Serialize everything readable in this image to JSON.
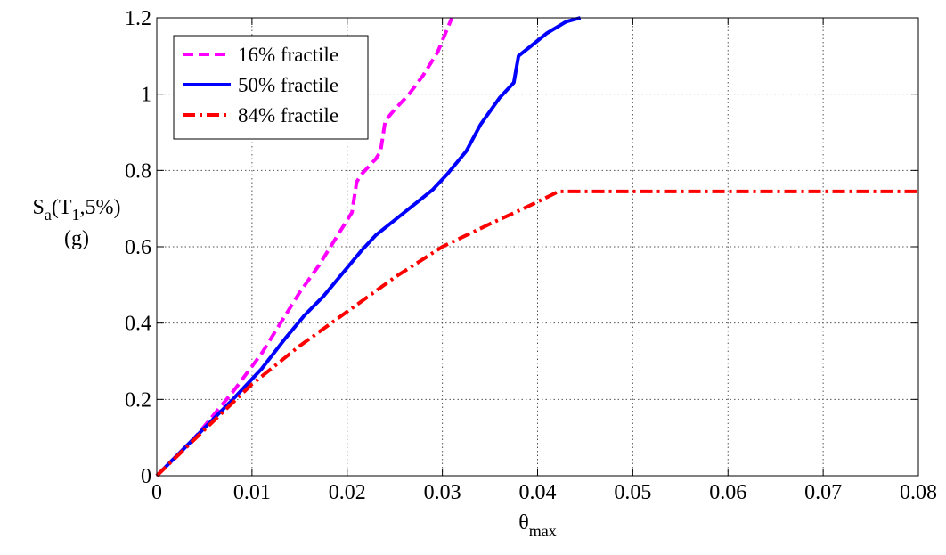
{
  "chart_data": {
    "type": "line",
    "xlabel": {
      "base": "θ",
      "sub": "max"
    },
    "ylabel": {
      "line1": {
        "base": "S",
        "sub1": "a",
        "mid": "(T",
        "sub2": "1",
        "end": ",5%)"
      },
      "line2": "(g)"
    },
    "xlim": [
      0,
      0.08
    ],
    "ylim": [
      0,
      1.2
    ],
    "xticks": [
      0,
      0.01,
      0.02,
      0.03,
      0.04,
      0.05,
      0.06,
      0.07,
      0.08
    ],
    "xtick_labels": [
      "0",
      "0.01",
      "0.02",
      "0.03",
      "0.04",
      "0.05",
      "0.06",
      "0.07",
      "0.08"
    ],
    "yticks": [
      0,
      0.2,
      0.4,
      0.6,
      0.8,
      1.0,
      1.2
    ],
    "ytick_labels": [
      "0",
      "0.2",
      "0.4",
      "0.6",
      "0.8",
      "1",
      "1.2"
    ],
    "grid": true,
    "legend_position": "top-left",
    "series": [
      {
        "name": "16% fractile",
        "color": "#ff00ff",
        "style": "dashed",
        "points": [
          [
            0,
            0
          ],
          [
            0.004,
            0.1
          ],
          [
            0.008,
            0.22
          ],
          [
            0.011,
            0.32
          ],
          [
            0.0135,
            0.42
          ],
          [
            0.015,
            0.48
          ],
          [
            0.017,
            0.55
          ],
          [
            0.019,
            0.63
          ],
          [
            0.0205,
            0.69
          ],
          [
            0.021,
            0.77
          ],
          [
            0.0215,
            0.79
          ],
          [
            0.023,
            0.83
          ],
          [
            0.0235,
            0.85
          ],
          [
            0.024,
            0.93
          ],
          [
            0.025,
            0.96
          ],
          [
            0.0265,
            1.0
          ],
          [
            0.028,
            1.05
          ],
          [
            0.0295,
            1.11
          ],
          [
            0.031,
            1.2
          ]
        ]
      },
      {
        "name": "50% fractile",
        "color": "#0000ff",
        "style": "solid",
        "points": [
          [
            0,
            0
          ],
          [
            0.004,
            0.1
          ],
          [
            0.008,
            0.2
          ],
          [
            0.011,
            0.28
          ],
          [
            0.0135,
            0.36
          ],
          [
            0.0155,
            0.42
          ],
          [
            0.0175,
            0.47
          ],
          [
            0.0195,
            0.53
          ],
          [
            0.0215,
            0.59
          ],
          [
            0.023,
            0.63
          ],
          [
            0.025,
            0.67
          ],
          [
            0.027,
            0.71
          ],
          [
            0.029,
            0.75
          ],
          [
            0.0305,
            0.79
          ],
          [
            0.0325,
            0.85
          ],
          [
            0.034,
            0.92
          ],
          [
            0.036,
            0.99
          ],
          [
            0.0375,
            1.03
          ],
          [
            0.038,
            1.1
          ],
          [
            0.0395,
            1.13
          ],
          [
            0.041,
            1.16
          ],
          [
            0.043,
            1.19
          ],
          [
            0.0445,
            1.2
          ]
        ]
      },
      {
        "name": "84% fractile",
        "color": "#ff0000",
        "style": "dashdot",
        "points": [
          [
            0,
            0
          ],
          [
            0.005,
            0.12
          ],
          [
            0.01,
            0.24
          ],
          [
            0.015,
            0.34
          ],
          [
            0.02,
            0.43
          ],
          [
            0.025,
            0.52
          ],
          [
            0.03,
            0.6
          ],
          [
            0.035,
            0.66
          ],
          [
            0.0385,
            0.7
          ],
          [
            0.041,
            0.73
          ],
          [
            0.0422,
            0.745
          ],
          [
            0.05,
            0.745
          ],
          [
            0.06,
            0.745
          ],
          [
            0.07,
            0.745
          ],
          [
            0.08,
            0.745
          ]
        ]
      }
    ]
  }
}
